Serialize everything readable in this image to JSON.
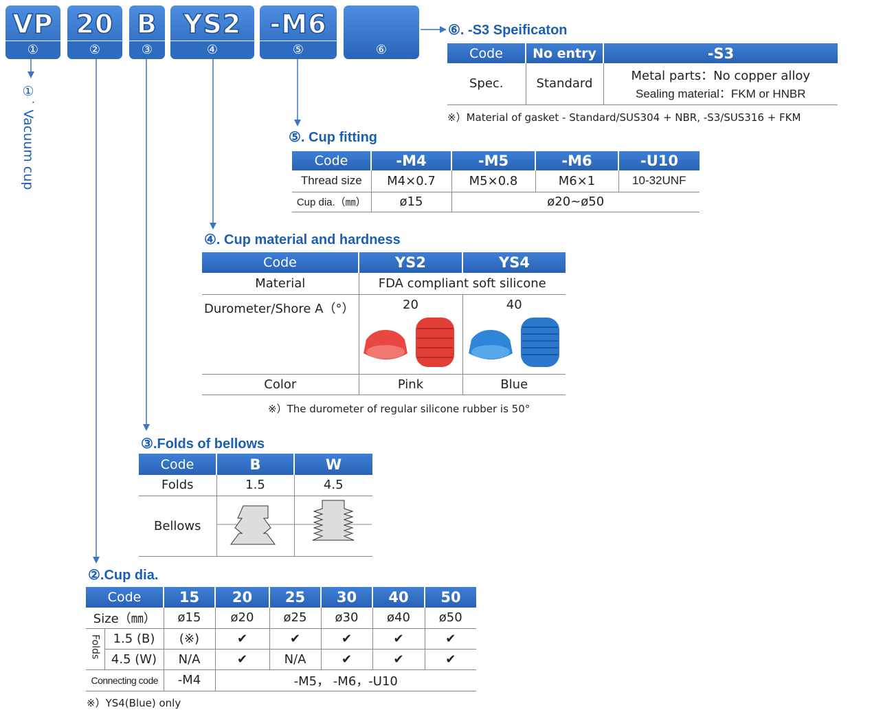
{
  "code_boxes": [
    {
      "code": "VP",
      "number": "①"
    },
    {
      "code": "20",
      "number": "②"
    },
    {
      "code": "B",
      "number": "③"
    },
    {
      "code": "YS2",
      "number": "④"
    },
    {
      "code": "-M6",
      "number": "⑤"
    },
    {
      "number": "⑥"
    }
  ],
  "vacuum_cup": {
    "number": "①˙",
    "label": "Vacuum cup"
  },
  "s3": {
    "title": "⑥. -S3 Speificaton",
    "header": [
      "Code",
      "No entry",
      "-S3"
    ],
    "spec_label": "Spec.",
    "spec_standard": "Standard",
    "spec_lines": [
      "Metal parts：No copper alloy",
      "Sealing material：FKM or HNBR"
    ],
    "note": "※）Material of gasket - Standard/SUS304 + NBR, -S3/SUS316 + FKM"
  },
  "cup_fitting": {
    "title": "⑤. Cup fitting",
    "header": [
      "Code",
      "-M4",
      "-M5",
      "-M6",
      "-U10"
    ],
    "rows": [
      [
        "Thread size",
        "M4×0.7",
        "M5×0.8",
        "M6×1",
        "10-32UNF"
      ],
      [
        "Cup dia.（㎜）",
        "ø15",
        "ø20~ø50"
      ]
    ]
  },
  "cup_material": {
    "title": "④. Cup material and hardness",
    "header": [
      "Code",
      "YS2",
      "YS4"
    ],
    "rows": [
      [
        "Material",
        "FDA compliant soft silicone"
      ],
      [
        "Durometer/Shore A（°）",
        "20",
        "40"
      ],
      [
        "Color",
        "Pink",
        "Blue"
      ]
    ],
    "note": "※）The durometer of regular silicone rubber is 50°"
  },
  "folds": {
    "title": "③.Folds of bellows",
    "header": [
      "Code",
      "B",
      "W"
    ],
    "rows": [
      [
        "Folds",
        "1.5",
        "4.5"
      ],
      [
        "Bellows"
      ]
    ]
  },
  "cup_dia": {
    "title": "②.Cup dia.",
    "header": [
      "Code",
      "15",
      "20",
      "25",
      "30",
      "40",
      "50"
    ],
    "rows": [
      [
        "Size（㎜）",
        "ø15",
        "ø20",
        "ø25",
        "ø30",
        "ø40",
        "ø50"
      ],
      [
        "Folds",
        "1.5 (B)",
        "(※)",
        "✔",
        "✔",
        "✔",
        "✔",
        "✔"
      ],
      [
        "4.5 (W)",
        "N/A",
        "✔",
        "N/A",
        "✔",
        "✔",
        "✔"
      ],
      [
        "Connecting code",
        "-M4",
        "-M5， -M6，-U10"
      ]
    ],
    "note": "※）YS4(Blue) only"
  }
}
